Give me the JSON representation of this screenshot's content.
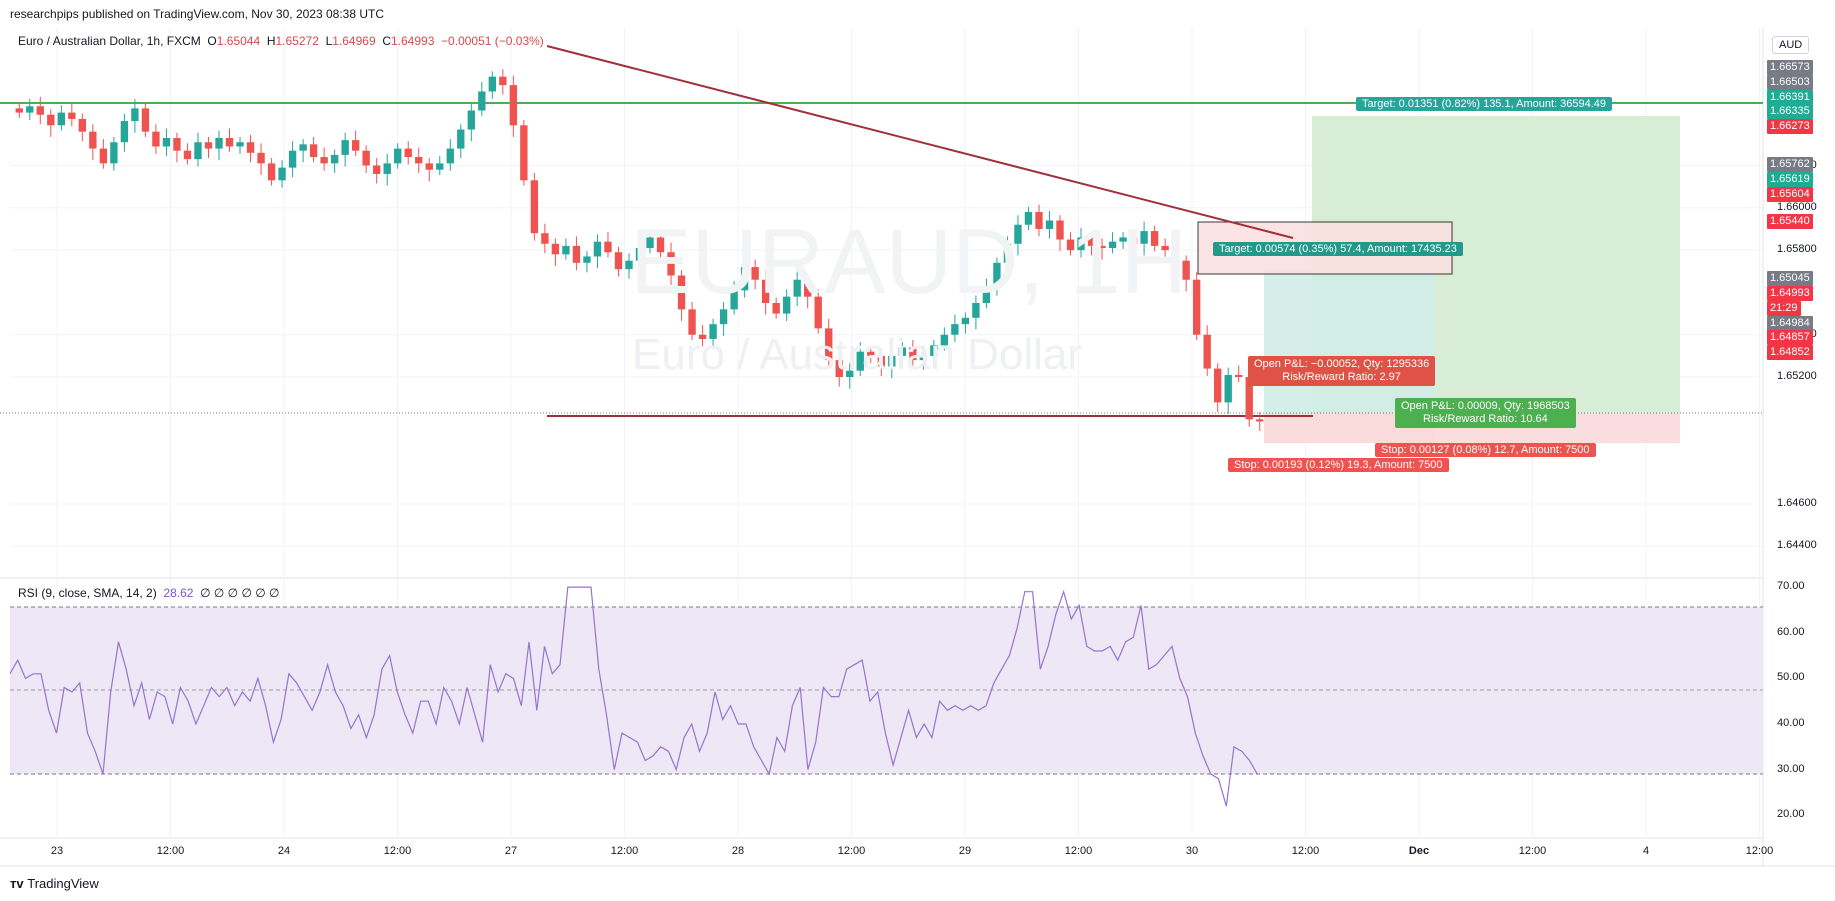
{
  "header": {
    "published": "researchpips published on TradingView.com, Nov 30, 2023 08:38 UTC"
  },
  "legend": {
    "symbol": "Euro / Australian Dollar, 1h, FXCM",
    "o_label": "O",
    "o": "1.65044",
    "h_label": "H",
    "h": "1.65272",
    "l_label": "L",
    "l": "1.64969",
    "c_label": "C",
    "c": "1.64993",
    "change": "−0.00051 (−0.03%)"
  },
  "watermark": {
    "ticker": "EURAUD, 1H",
    "name": "Euro / Australian Dollar"
  },
  "currency_button": "AUD",
  "rsi_legend": {
    "label": "RSI (9, close, SMA, 14, 2)",
    "value": "28.62",
    "extras": "∅ ∅ ∅ ∅ ∅ ∅"
  },
  "footer": {
    "brand": "TradingView"
  },
  "colors": {
    "up": "#26a69a",
    "down": "#ef5350",
    "trendline": "#a0303a",
    "target_line": "#4caf50",
    "rsi_line": "#9575cd",
    "rsi_band": "#ede7f6"
  },
  "chart_data": [
    {
      "type": "candlestick",
      "title": "Euro / Australian Dollar, 1h, FXCM",
      "ylim": [
        1.6425,
        1.6685
      ],
      "y_ticks": [
        "1.66200",
        "1.66000",
        "1.65800",
        "1.65400",
        "1.65200",
        "1.64600",
        "1.64400"
      ],
      "x_ticks": [
        "23",
        "12:00",
        "24",
        "12:00",
        "27",
        "12:00",
        "28",
        "12:00",
        "29",
        "12:00",
        "30",
        "12:00",
        "Dec",
        "12:00",
        "4",
        "12:00"
      ],
      "price_labels": [
        {
          "text": "1.66573",
          "color": "#787b86"
        },
        {
          "text": "1.66503",
          "color": "#787b86"
        },
        {
          "text": "1.66391",
          "color": "#22ab94"
        },
        {
          "text": "1.66335",
          "color": "#22ab94"
        },
        {
          "text": "1.66273",
          "color": "#f23645"
        },
        {
          "text": "1.65762",
          "color": "#787b86"
        },
        {
          "text": "1.65619",
          "color": "#22ab94"
        },
        {
          "text": "1.65604",
          "color": "#f23645"
        },
        {
          "text": "1.65440",
          "color": "#f23645"
        },
        {
          "text": "1.65045",
          "color": "#787b86"
        },
        {
          "text": "1.64993",
          "color": "#f23645"
        },
        {
          "text": "21:29",
          "color": "#f23645"
        },
        {
          "text": "1.64984",
          "color": "#787b86"
        },
        {
          "text": "1.64857",
          "color": "#f23645"
        },
        {
          "text": "1.64852",
          "color": "#f23645"
        }
      ],
      "close_series": [
        1.6645,
        1.6648,
        1.6644,
        1.6639,
        1.6645,
        1.6642,
        1.6636,
        1.6628,
        1.6621,
        1.6631,
        1.6641,
        1.6647,
        1.6636,
        1.6629,
        1.6633,
        1.6627,
        1.6623,
        1.6631,
        1.6628,
        1.6633,
        1.6629,
        1.6631,
        1.6626,
        1.6621,
        1.6613,
        1.6619,
        1.6627,
        1.663,
        1.6624,
        1.6621,
        1.6625,
        1.6632,
        1.6627,
        1.662,
        1.6616,
        1.6621,
        1.6628,
        1.6624,
        1.6621,
        1.6618,
        1.6621,
        1.6628,
        1.6637,
        1.6646,
        1.6655,
        1.6662,
        1.6658,
        1.6639,
        1.6613,
        1.6588,
        1.6583,
        1.6578,
        1.6582,
        1.6574,
        1.6577,
        1.6584,
        1.6579,
        1.6571,
        1.6575,
        1.6581,
        1.6586,
        1.6579,
        1.6568,
        1.6552,
        1.654,
        1.6538,
        1.6545,
        1.6552,
        1.6561,
        1.6572,
        1.6566,
        1.6555,
        1.655,
        1.6558,
        1.6566,
        1.6558,
        1.6543,
        1.6528,
        1.652,
        1.6523,
        1.6532,
        1.653,
        1.6525,
        1.653,
        1.6534,
        1.6528,
        1.653,
        1.6535,
        1.654,
        1.6545,
        1.6548,
        1.6555,
        1.6562,
        1.6574,
        1.6583,
        1.6592,
        1.6598,
        1.659,
        1.6594,
        1.6585,
        1.658,
        1.6586,
        1.6582,
        1.6581,
        1.6584,
        1.6586,
        1.6583,
        1.6589,
        1.6582,
        1.658,
        1.6575,
        1.6566,
        1.654,
        1.6524,
        1.6508,
        1.6521,
        1.652,
        1.65,
        1.6499
      ],
      "trades": [
        {
          "target_label": "Target: 0.01351 (0.82%) 135.1, Amount: 36594.49",
          "pnl_label": "Open P&L: 0.00009, Qty: 1968503",
          "rr_label": "Risk/Reward Ratio: 10.64",
          "stop_label": "Stop: 0.00127 (0.08%) 12.7, Amount: 7500"
        },
        {
          "target_label": "Target: 0.00574 (0.35%) 57.4, Amount: 17435.23",
          "pnl_label": "Open P&L: −0.00052, Qty: 1295336",
          "rr_label": "Risk/Reward Ratio: 2.97",
          "stop_label": "Stop: 0.00193 (0.12%) 19.3, Amount: 7500"
        }
      ]
    },
    {
      "type": "line",
      "title": "RSI (9, close, SMA, 14, 2)",
      "ylim": [
        15,
        72
      ],
      "y_ticks": [
        "70.00",
        "60.00",
        "50.00",
        "40.00",
        "30.00",
        "20.00"
      ],
      "bands": [
        30,
        50,
        70
      ],
      "values": [
        51,
        54,
        50,
        51,
        51,
        43,
        38,
        48,
        47,
        49,
        38,
        34,
        29,
        47,
        58,
        52,
        44,
        49,
        41,
        47,
        46,
        40,
        48,
        45,
        40,
        44,
        48,
        46,
        48,
        44,
        47,
        45,
        50,
        44,
        36,
        41,
        51,
        49,
        46,
        43,
        47,
        53,
        47,
        44,
        39,
        42,
        37,
        42,
        52,
        55,
        47,
        42,
        38,
        45,
        45,
        40,
        48,
        45,
        40,
        48,
        42,
        36,
        53,
        47,
        51,
        50,
        44,
        58,
        43,
        57,
        51,
        53,
        70,
        70,
        70,
        70,
        52,
        42,
        30,
        38,
        37,
        36,
        32,
        33,
        35,
        34,
        30,
        37,
        40,
        34,
        38,
        47,
        41,
        44,
        40,
        40,
        35,
        32,
        29,
        37,
        34,
        44,
        48,
        30,
        36,
        48,
        46,
        46,
        52,
        53,
        54,
        45,
        47,
        38,
        31,
        37,
        43,
        37,
        40,
        37,
        45,
        43,
        44,
        43,
        44,
        43,
        44,
        49,
        52,
        55,
        61,
        69,
        69,
        52,
        57,
        64,
        69,
        63,
        66,
        57,
        56,
        56,
        57,
        54,
        58,
        59,
        66,
        52,
        53,
        55,
        57,
        50,
        46,
        38,
        33,
        29,
        28,
        22,
        35,
        34,
        32,
        29
      ],
      "current": 28.62
    }
  ]
}
